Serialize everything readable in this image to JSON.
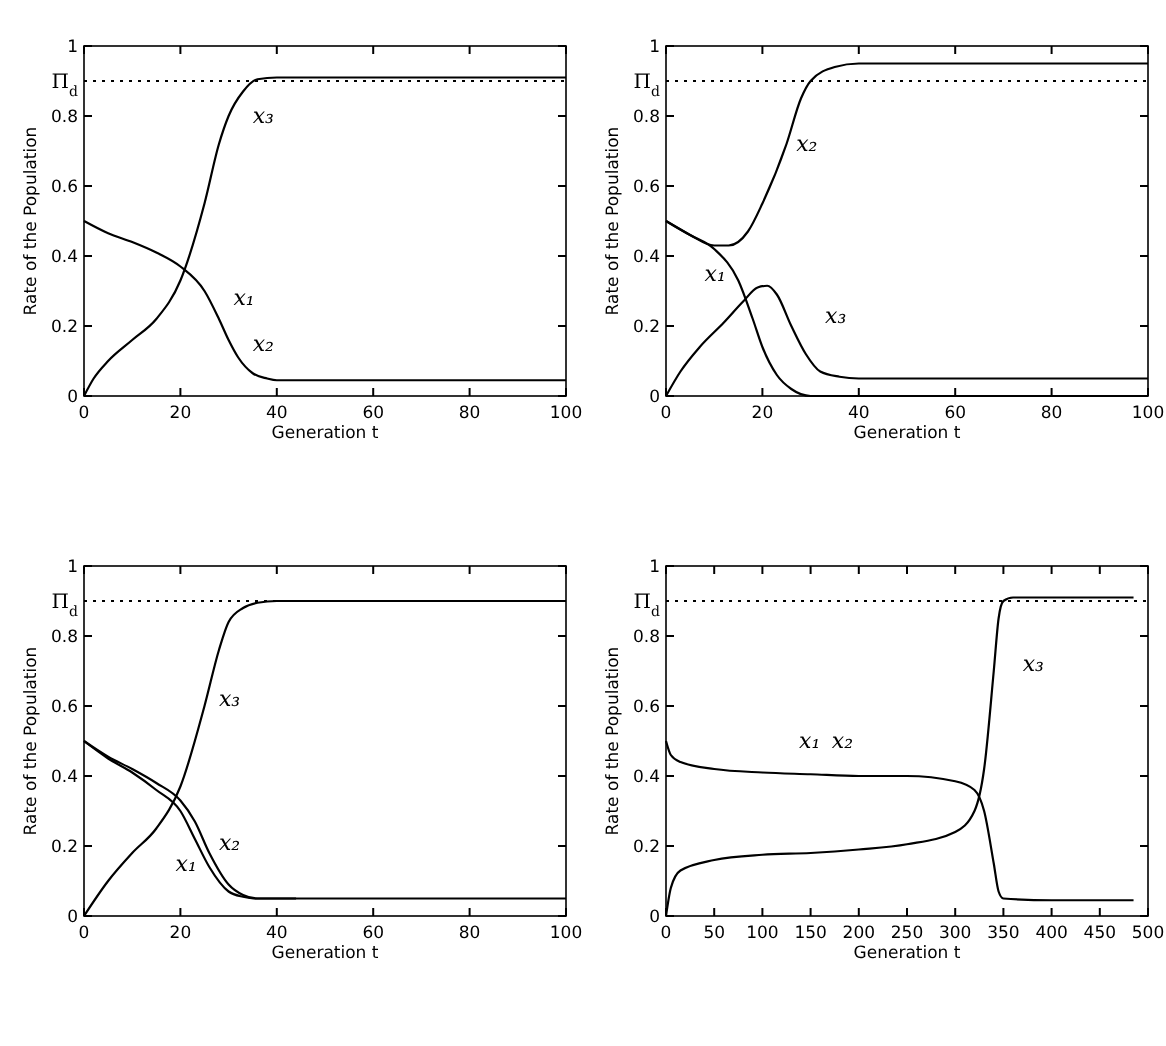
{
  "chart_data": [
    {
      "type": "line",
      "xlabel": "Generation t",
      "ylabel": "Rate of the Population",
      "xlim": [
        0,
        100
      ],
      "xticks": [
        0,
        20,
        40,
        60,
        80,
        100
      ],
      "ylim": [
        0,
        1
      ],
      "yticks": [
        0,
        0.2,
        0.4,
        0.6,
        0.8,
        1
      ],
      "line_style": "solid",
      "ref_lines": [
        {
          "axis": "y",
          "value": 0.9,
          "label": "Π$_{d}$",
          "line_style": "dotted",
          "color": "#000000"
        }
      ],
      "series": [
        {
          "color": "#000000",
          "x": [
            0,
            5,
            10,
            15,
            20,
            25,
            28,
            30,
            32,
            35,
            38,
            40,
            100
          ],
          "values": [
            0.5,
            0.465,
            0.44,
            0.41,
            0.37,
            0.3,
            0.22,
            0.16,
            0.11,
            0.065,
            0.05,
            0.045,
            0.045
          ]
        },
        {
          "color": "#000000",
          "x": [
            0,
            2,
            5,
            10,
            15,
            20,
            25,
            28,
            30,
            33,
            36,
            40,
            100
          ],
          "values": [
            0,
            0.05,
            0.1,
            0.16,
            0.22,
            0.33,
            0.55,
            0.72,
            0.8,
            0.87,
            0.905,
            0.91,
            0.91
          ]
        }
      ],
      "annotations": [
        "x₃",
        "x₁",
        "x₂"
      ]
    },
    {
      "type": "line",
      "xlabel": "Generation t",
      "ylabel": "Rate of the Population",
      "xlim": [
        0,
        100
      ],
      "xticks": [
        0,
        20,
        40,
        60,
        80,
        100
      ],
      "ylim": [
        0,
        1
      ],
      "yticks": [
        0,
        0.2,
        0.4,
        0.6,
        0.8,
        1
      ],
      "line_style": "solid",
      "ref_lines": [
        {
          "axis": "y",
          "value": 0.9,
          "label": "Π$_{d}$",
          "line_style": "dotted",
          "color": "#000000"
        }
      ],
      "series": [
        {
          "color": "#000000",
          "x": [
            0,
            5,
            10,
            15,
            18,
            20,
            23,
            26,
            30,
            100
          ],
          "values": [
            0.5,
            0.46,
            0.42,
            0.33,
            0.22,
            0.14,
            0.06,
            0.02,
            0,
            0
          ]
        },
        {
          "color": "#000000",
          "x": [
            0,
            5,
            10,
            13,
            17,
            20,
            25,
            28,
            30,
            35,
            40,
            100
          ],
          "values": [
            0.5,
            0.46,
            0.43,
            0.43,
            0.47,
            0.55,
            0.72,
            0.85,
            0.9,
            0.94,
            0.95,
            0.95
          ]
        },
        {
          "color": "#000000",
          "x": [
            0,
            3,
            7,
            12,
            16,
            19,
            21,
            23,
            26,
            29,
            32,
            36,
            40,
            100
          ],
          "values": [
            0,
            0.07,
            0.14,
            0.21,
            0.27,
            0.31,
            0.315,
            0.29,
            0.2,
            0.12,
            0.07,
            0.055,
            0.05,
            0.05
          ]
        }
      ],
      "annotations": [
        "x₂",
        "x₁",
        "x₃"
      ]
    },
    {
      "type": "line",
      "xlabel": "Generation t",
      "ylabel": "Rate of the Population",
      "xlim": [
        0,
        100
      ],
      "xticks": [
        0,
        20,
        40,
        60,
        80,
        100
      ],
      "ylim": [
        0,
        1
      ],
      "yticks": [
        0,
        0.2,
        0.4,
        0.6,
        0.8,
        1
      ],
      "line_style": "solid",
      "ref_lines": [
        {
          "axis": "y",
          "value": 0.9,
          "label": "Π$_{d}$",
          "line_style": "dotted",
          "color": "#000000"
        }
      ],
      "series": [
        {
          "color": "#000000",
          "x": [
            0,
            5,
            10,
            15,
            20,
            23,
            26,
            30,
            33,
            36,
            100
          ],
          "values": [
            0.5,
            0.45,
            0.41,
            0.36,
            0.3,
            0.22,
            0.14,
            0.07,
            0.055,
            0.05,
            0.05
          ]
        },
        {
          "color": "#000000",
          "x": [
            0,
            5,
            10,
            15,
            20,
            23,
            26,
            30,
            33,
            36,
            44
          ],
          "values": [
            0.5,
            0.455,
            0.42,
            0.38,
            0.33,
            0.27,
            0.18,
            0.09,
            0.06,
            0.05,
            0.05
          ]
        },
        {
          "color": "#000000",
          "x": [
            0,
            5,
            10,
            15,
            20,
            25,
            28,
            30,
            33,
            36,
            40,
            100
          ],
          "values": [
            0,
            0.1,
            0.18,
            0.25,
            0.37,
            0.6,
            0.76,
            0.84,
            0.88,
            0.895,
            0.9,
            0.9
          ]
        }
      ],
      "annotations": [
        "x₃",
        "x₂",
        "x₁"
      ]
    },
    {
      "type": "line",
      "xlabel": "Generation t",
      "ylabel": "Rate of the Population",
      "xlim": [
        0,
        500
      ],
      "xticks": [
        0,
        50,
        100,
        150,
        200,
        250,
        300,
        350,
        400,
        450,
        500
      ],
      "ylim": [
        0,
        1
      ],
      "yticks": [
        0,
        0.2,
        0.4,
        0.6,
        0.8,
        1
      ],
      "line_style": "solid",
      "ref_lines": [
        {
          "axis": "y",
          "value": 0.9,
          "label": "Π$_{d}$",
          "line_style": "dotted",
          "color": "#000000"
        }
      ],
      "series": [
        {
          "color": "#000000",
          "x": [
            0,
            5,
            15,
            50,
            100,
            150,
            200,
            250,
            300,
            320,
            330,
            340,
            345,
            350,
            400,
            485
          ],
          "values": [
            0.5,
            0.46,
            0.44,
            0.42,
            0.41,
            0.405,
            0.4,
            0.4,
            0.385,
            0.36,
            0.3,
            0.15,
            0.07,
            0.05,
            0.045,
            0.045
          ]
        },
        {
          "color": "#000000",
          "x": [
            0,
            5,
            15,
            50,
            100,
            150,
            200,
            250,
            300,
            320,
            330,
            340,
            345,
            350,
            360,
            485
          ],
          "values": [
            0,
            0.08,
            0.13,
            0.16,
            0.175,
            0.18,
            0.19,
            0.205,
            0.24,
            0.3,
            0.42,
            0.7,
            0.85,
            0.9,
            0.91,
            0.91
          ]
        }
      ],
      "annotations": [
        "x₁",
        "x₂",
        "x₃"
      ]
    }
  ]
}
